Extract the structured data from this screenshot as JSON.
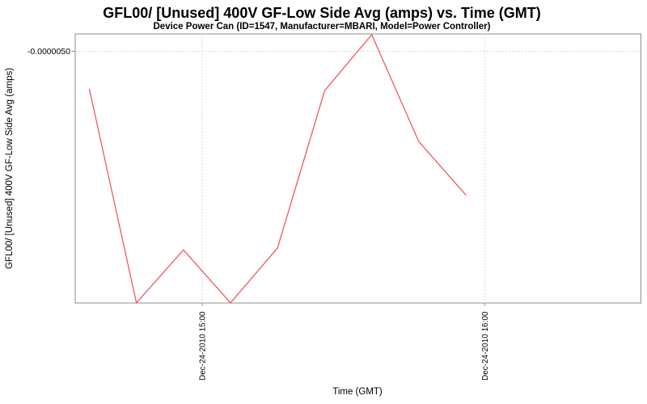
{
  "chart_data": {
    "type": "line",
    "title": "GFL00/ [Unused] 400V GF-Low Side Avg (amps) vs. Time (GMT)",
    "subtitle": "Device Power Can (ID=1547, Manufacturer=MBARI, Model=Power Controller)",
    "xlabel": "Time (GMT)",
    "ylabel": "GFL00/ [Unused] 400V GF-Low Side Avg (amps)",
    "legend": "none",
    "grid": true,
    "x_axis": {
      "unit": "minutes-of-day (GMT), Dec-24-2010",
      "range_minutes": [
        873,
        993.2
      ],
      "ticks": [
        {
          "label": "Dec-24-2010 15:00",
          "t": 900
        },
        {
          "label": "Dec-24-2010 16:00",
          "t": 960
        }
      ]
    },
    "y_axis": {
      "range": [
        -4.9655e-06,
        -5.4994e-06
      ],
      "ticks": [
        {
          "label": "-0.0000050",
          "value": -5e-06
        }
      ]
    },
    "series": [
      {
        "name": "GFL00/ [Unused] 400V GF-Low Side Avg (amps)",
        "color": "#ee5a5a",
        "points": [
          {
            "time": "Dec-24-2010 14:36",
            "t": 876,
            "value": -5.075e-06
          },
          {
            "time": "Dec-24-2010 14:46",
            "t": 886,
            "value": -5.499e-06
          },
          {
            "time": "Dec-24-2010 14:56",
            "t": 896,
            "value": -5.394e-06
          },
          {
            "time": "Dec-24-2010 15:06",
            "t": 906,
            "value": -5.499e-06
          },
          {
            "time": "Dec-24-2010 15:16",
            "t": 916,
            "value": -5.39e-06
          },
          {
            "time": "Dec-24-2010 15:26",
            "t": 926,
            "value": -5.078e-06
          },
          {
            "time": "Dec-24-2010 15:36",
            "t": 936,
            "value": -4.967e-06
          },
          {
            "time": "Dec-24-2010 15:46",
            "t": 946,
            "value": -5.179e-06
          },
          {
            "time": "Dec-24-2010 15:56",
            "t": 956,
            "value": -5.285e-06
          }
        ]
      }
    ],
    "colors": {
      "line": "#ee5a5a",
      "grid": "#d8d8d8",
      "axis": "#8c8c8c",
      "text": "#000000",
      "plot_background": "#ffffff"
    }
  }
}
